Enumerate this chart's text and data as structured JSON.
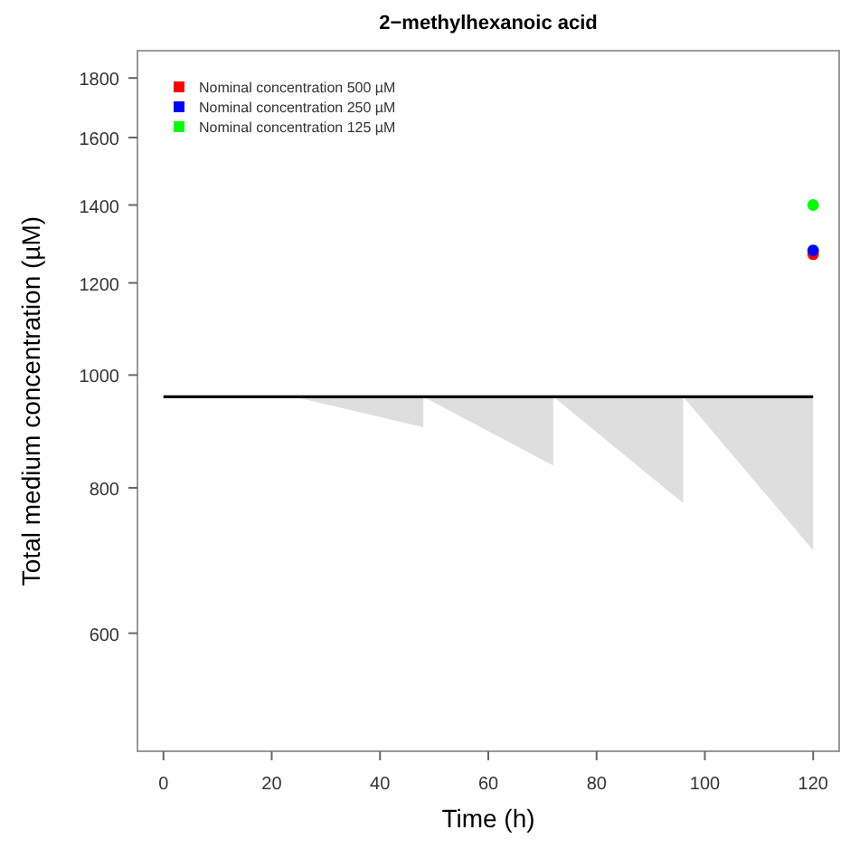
{
  "chart_data": {
    "type": "line",
    "title": "2−methylhexanoic acid",
    "xlabel": "Time (h)",
    "ylabel": "Total medium concentration (µM)",
    "log": "y",
    "xlim": [
      -4.8,
      124.8
    ],
    "ylim": [
      475,
      1900
    ],
    "xticks": [
      0,
      20,
      40,
      60,
      80,
      100,
      120
    ],
    "yticks": [
      600,
      800,
      1000,
      1200,
      1400,
      1600,
      1800
    ],
    "grid": false,
    "legend": "top left",
    "series": [
      {
        "color": "#000000",
        "marker": "none",
        "x": [
          0,
          24,
          48,
          48,
          72,
          72,
          96,
          96,
          120
        ],
        "values": [
          958,
          958,
          958,
          958,
          958,
          958,
          958,
          958,
          958
        ],
        "lower": [
          958,
          958,
          902,
          958,
          836,
          958,
          776,
          958,
          707
        ],
        "upper": [
          958,
          958,
          958,
          958,
          958,
          958,
          958,
          958,
          958
        ]
      },
      {
        "type": "scatter",
        "marker": "circle",
        "name": "Nominal concentration 500 µM",
        "color": "#ff0000",
        "x": [
          120
        ],
        "values": [
          1270
        ]
      },
      {
        "type": "scatter",
        "marker": "circle",
        "name": "Nominal concentration 250 µM",
        "color": "#0000ff",
        "x": [
          120
        ],
        "values": [
          1280
        ]
      },
      {
        "type": "scatter",
        "marker": "circle",
        "name": "Nominal concentration 125 µM",
        "color": "#00ff00",
        "x": [
          120
        ],
        "values": [
          1400
        ]
      }
    ]
  }
}
